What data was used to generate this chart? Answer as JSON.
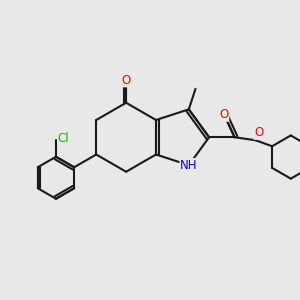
{
  "background_color": "#e8e8e8",
  "bond_color": "#1a1a1a",
  "atom_colors": {
    "O": "#ff0000",
    "N": "#0000ee",
    "Cl": "#00bb00",
    "C": "#1a1a1a"
  },
  "figsize": [
    3.0,
    3.0
  ],
  "dpi": 100,
  "xlim": [
    0,
    10
  ],
  "ylim": [
    0,
    10
  ]
}
